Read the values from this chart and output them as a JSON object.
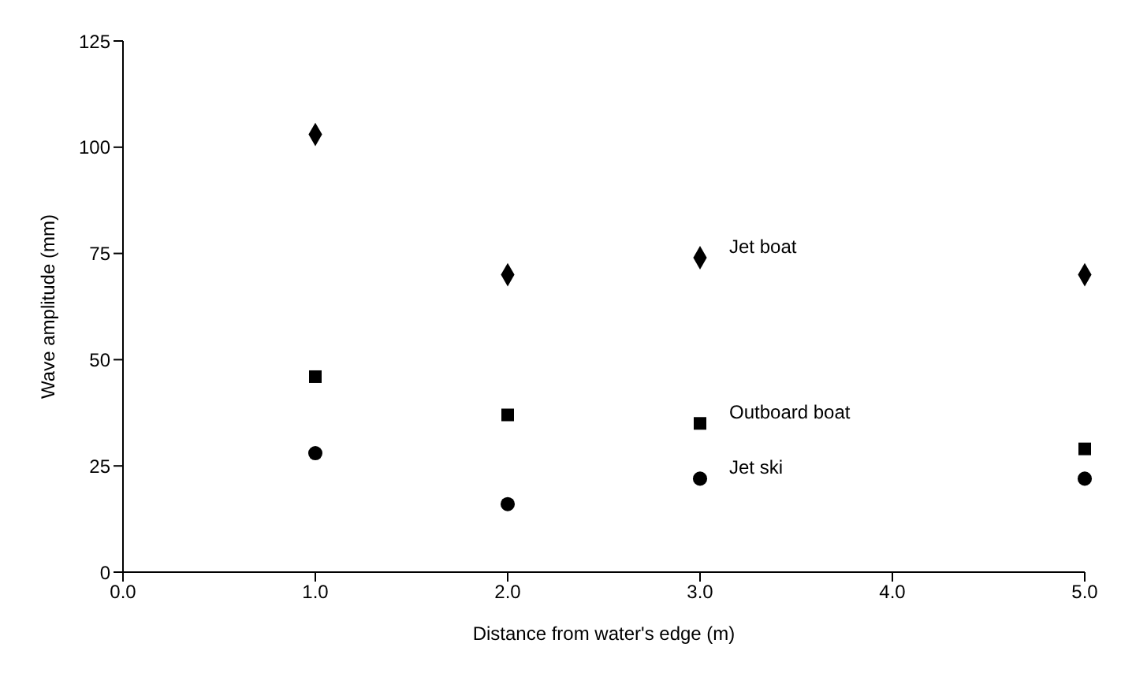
{
  "chart_data": {
    "type": "scatter",
    "xlabel": "Distance from water's edge (m)",
    "ylabel": "Wave amplitude (mm)",
    "x": [
      1,
      2,
      3,
      5
    ],
    "series": [
      {
        "name": "Jet boat",
        "color": "#000000",
        "marker": "diamond",
        "values": [
          103,
          70,
          74,
          70
        ]
      },
      {
        "name": "Outboard boat",
        "color": "#000000",
        "marker": "square",
        "values": [
          46,
          37,
          35,
          29
        ]
      },
      {
        "name": "Jet ski",
        "color": "#000000",
        "marker": "circle",
        "values": [
          28,
          16,
          22,
          22
        ]
      }
    ],
    "xlim": [
      0,
      5
    ],
    "xticks": [
      {
        "value": 0,
        "label": "0.0"
      },
      {
        "value": 1,
        "label": "1.0"
      },
      {
        "value": 2,
        "label": "2.0"
      },
      {
        "value": 3,
        "label": "3.0"
      },
      {
        "value": 4,
        "label": "4.0"
      },
      {
        "value": 5,
        "label": "5.0"
      }
    ],
    "ylim": [
      0,
      125
    ],
    "yticks": [
      0,
      25,
      50,
      75,
      100,
      125
    ],
    "grid": false,
    "legend": false
  }
}
